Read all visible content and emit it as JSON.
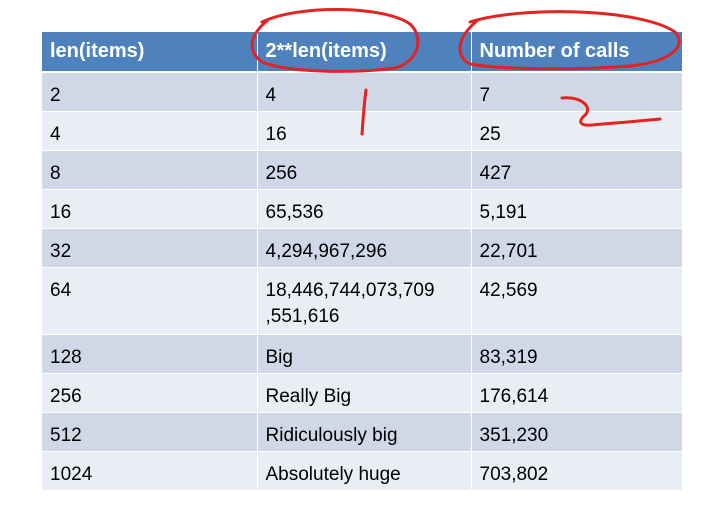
{
  "table": {
    "headers": [
      "len(items)",
      "2**len(items)",
      "Number of calls"
    ],
    "rows": [
      [
        "2",
        "4",
        "7"
      ],
      [
        "4",
        "16",
        "25"
      ],
      [
        "8",
        "256",
        "427"
      ],
      [
        "16",
        "65,536",
        "5,191"
      ],
      [
        "32",
        "4,294,967,296",
        "22,701"
      ],
      [
        "64",
        "18,446,744,073,709\n,551,616",
        "42,569"
      ],
      [
        "128",
        "Big",
        "83,319"
      ],
      [
        "256",
        "Really Big",
        "176,614"
      ],
      [
        "512",
        "Ridiculously big",
        "351,230"
      ],
      [
        "1024",
        "Absolutely huge",
        "703,802"
      ]
    ]
  },
  "colors": {
    "header_bg": "#4f81bd",
    "row_odd": "#d0d8e8",
    "row_even": "#e9edf4",
    "annotation": "#e32222"
  }
}
